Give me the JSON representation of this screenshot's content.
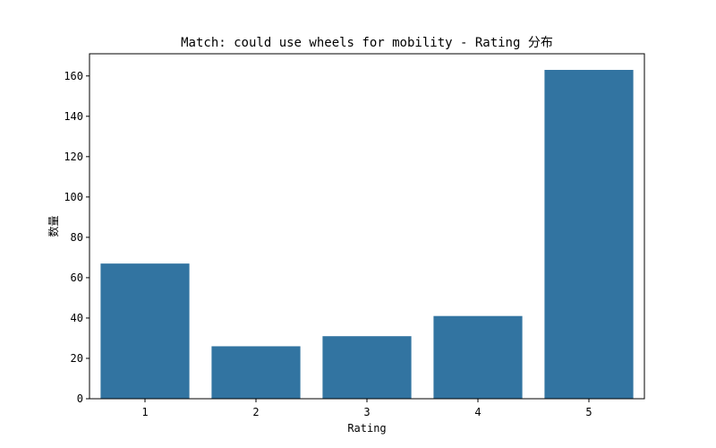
{
  "chart_data": {
    "type": "bar",
    "title": "Match: could use wheels for mobility - Rating 分布",
    "xlabel": "Rating",
    "ylabel": "数量",
    "categories": [
      "1",
      "2",
      "3",
      "4",
      "5"
    ],
    "values": [
      67,
      26,
      31,
      41,
      163
    ],
    "ylim": [
      0,
      171
    ],
    "yticks": [
      0,
      20,
      40,
      60,
      80,
      100,
      120,
      140,
      160
    ],
    "grid": false,
    "bar_color": "#3274a1"
  }
}
